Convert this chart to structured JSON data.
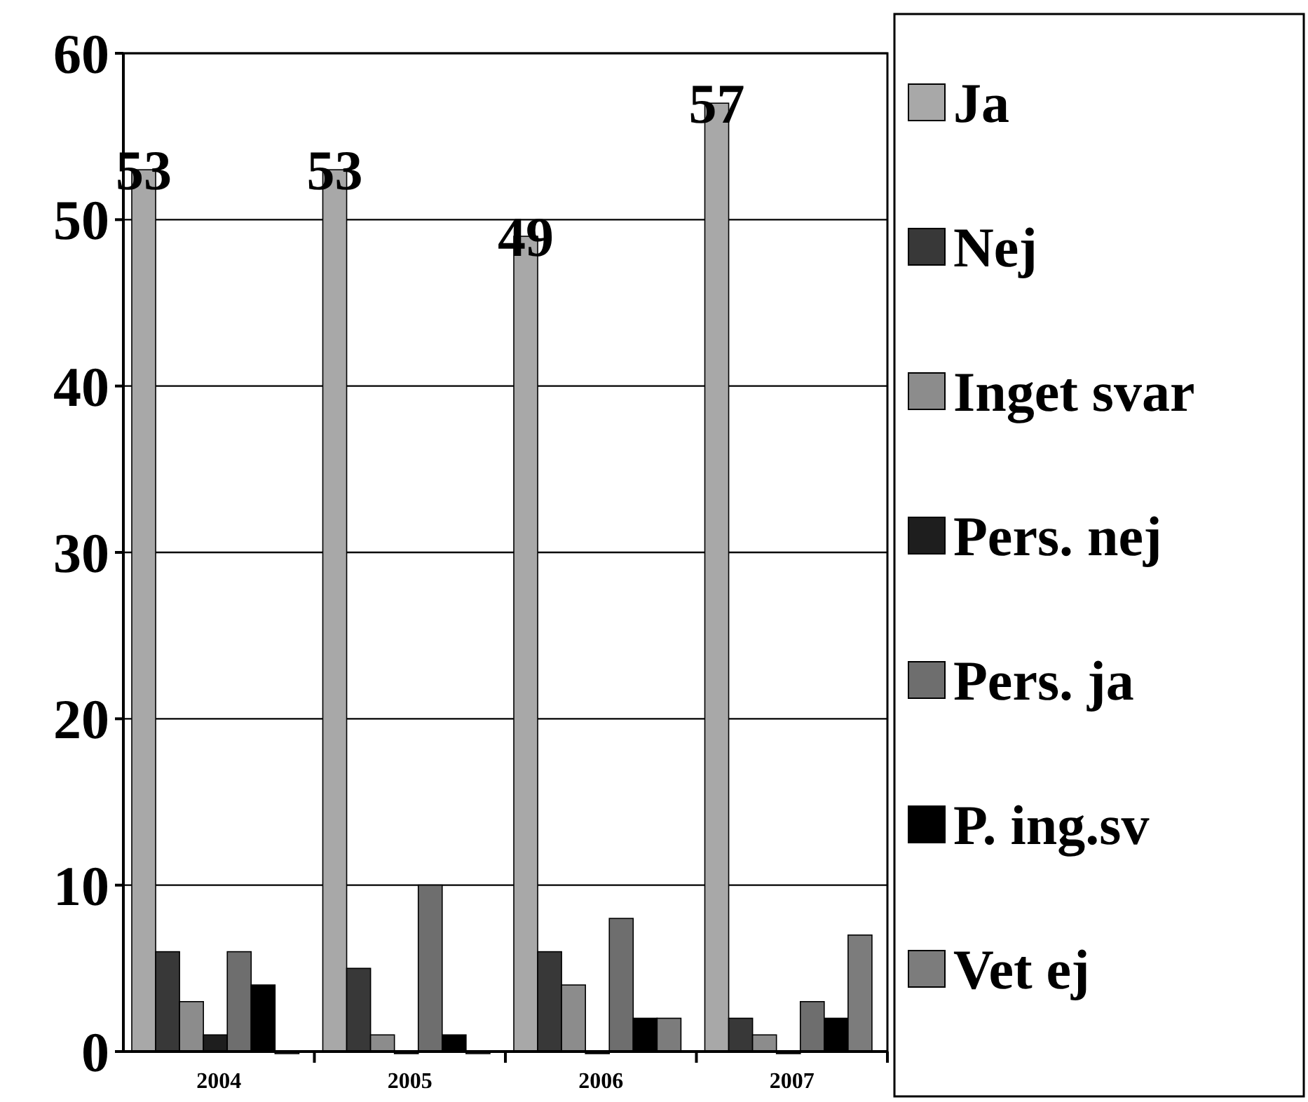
{
  "chart_data": {
    "type": "bar",
    "categories": [
      "2004",
      "2005",
      "2006",
      "2007"
    ],
    "series": [
      {
        "name": "Ja",
        "color": "#a8a8a8",
        "values": [
          53,
          53,
          49,
          57
        ],
        "value_labels": [
          "53",
          "53",
          "49",
          "57"
        ]
      },
      {
        "name": "Nej",
        "color": "#383838",
        "values": [
          6,
          5,
          6,
          2
        ]
      },
      {
        "name": "Inget svar",
        "color": "#8c8c8c",
        "values": [
          3,
          1,
          4,
          1
        ]
      },
      {
        "name": "Pers. nej",
        "color": "#1e1e1e",
        "values": [
          1,
          0,
          0,
          0
        ]
      },
      {
        "name": "Pers. ja",
        "color": "#6e6e6e",
        "values": [
          6,
          10,
          8,
          3
        ]
      },
      {
        "name": "P. ing.sv",
        "color": "#000000",
        "values": [
          4,
          1,
          2,
          2
        ]
      },
      {
        "name": "Vet ej",
        "color": "#7c7c7c",
        "values": [
          0,
          0,
          2,
          7
        ]
      }
    ],
    "ylim": [
      0,
      60
    ],
    "yticks": [
      0,
      10,
      20,
      30,
      40,
      50,
      60
    ],
    "grid": "y",
    "legend": "right"
  }
}
